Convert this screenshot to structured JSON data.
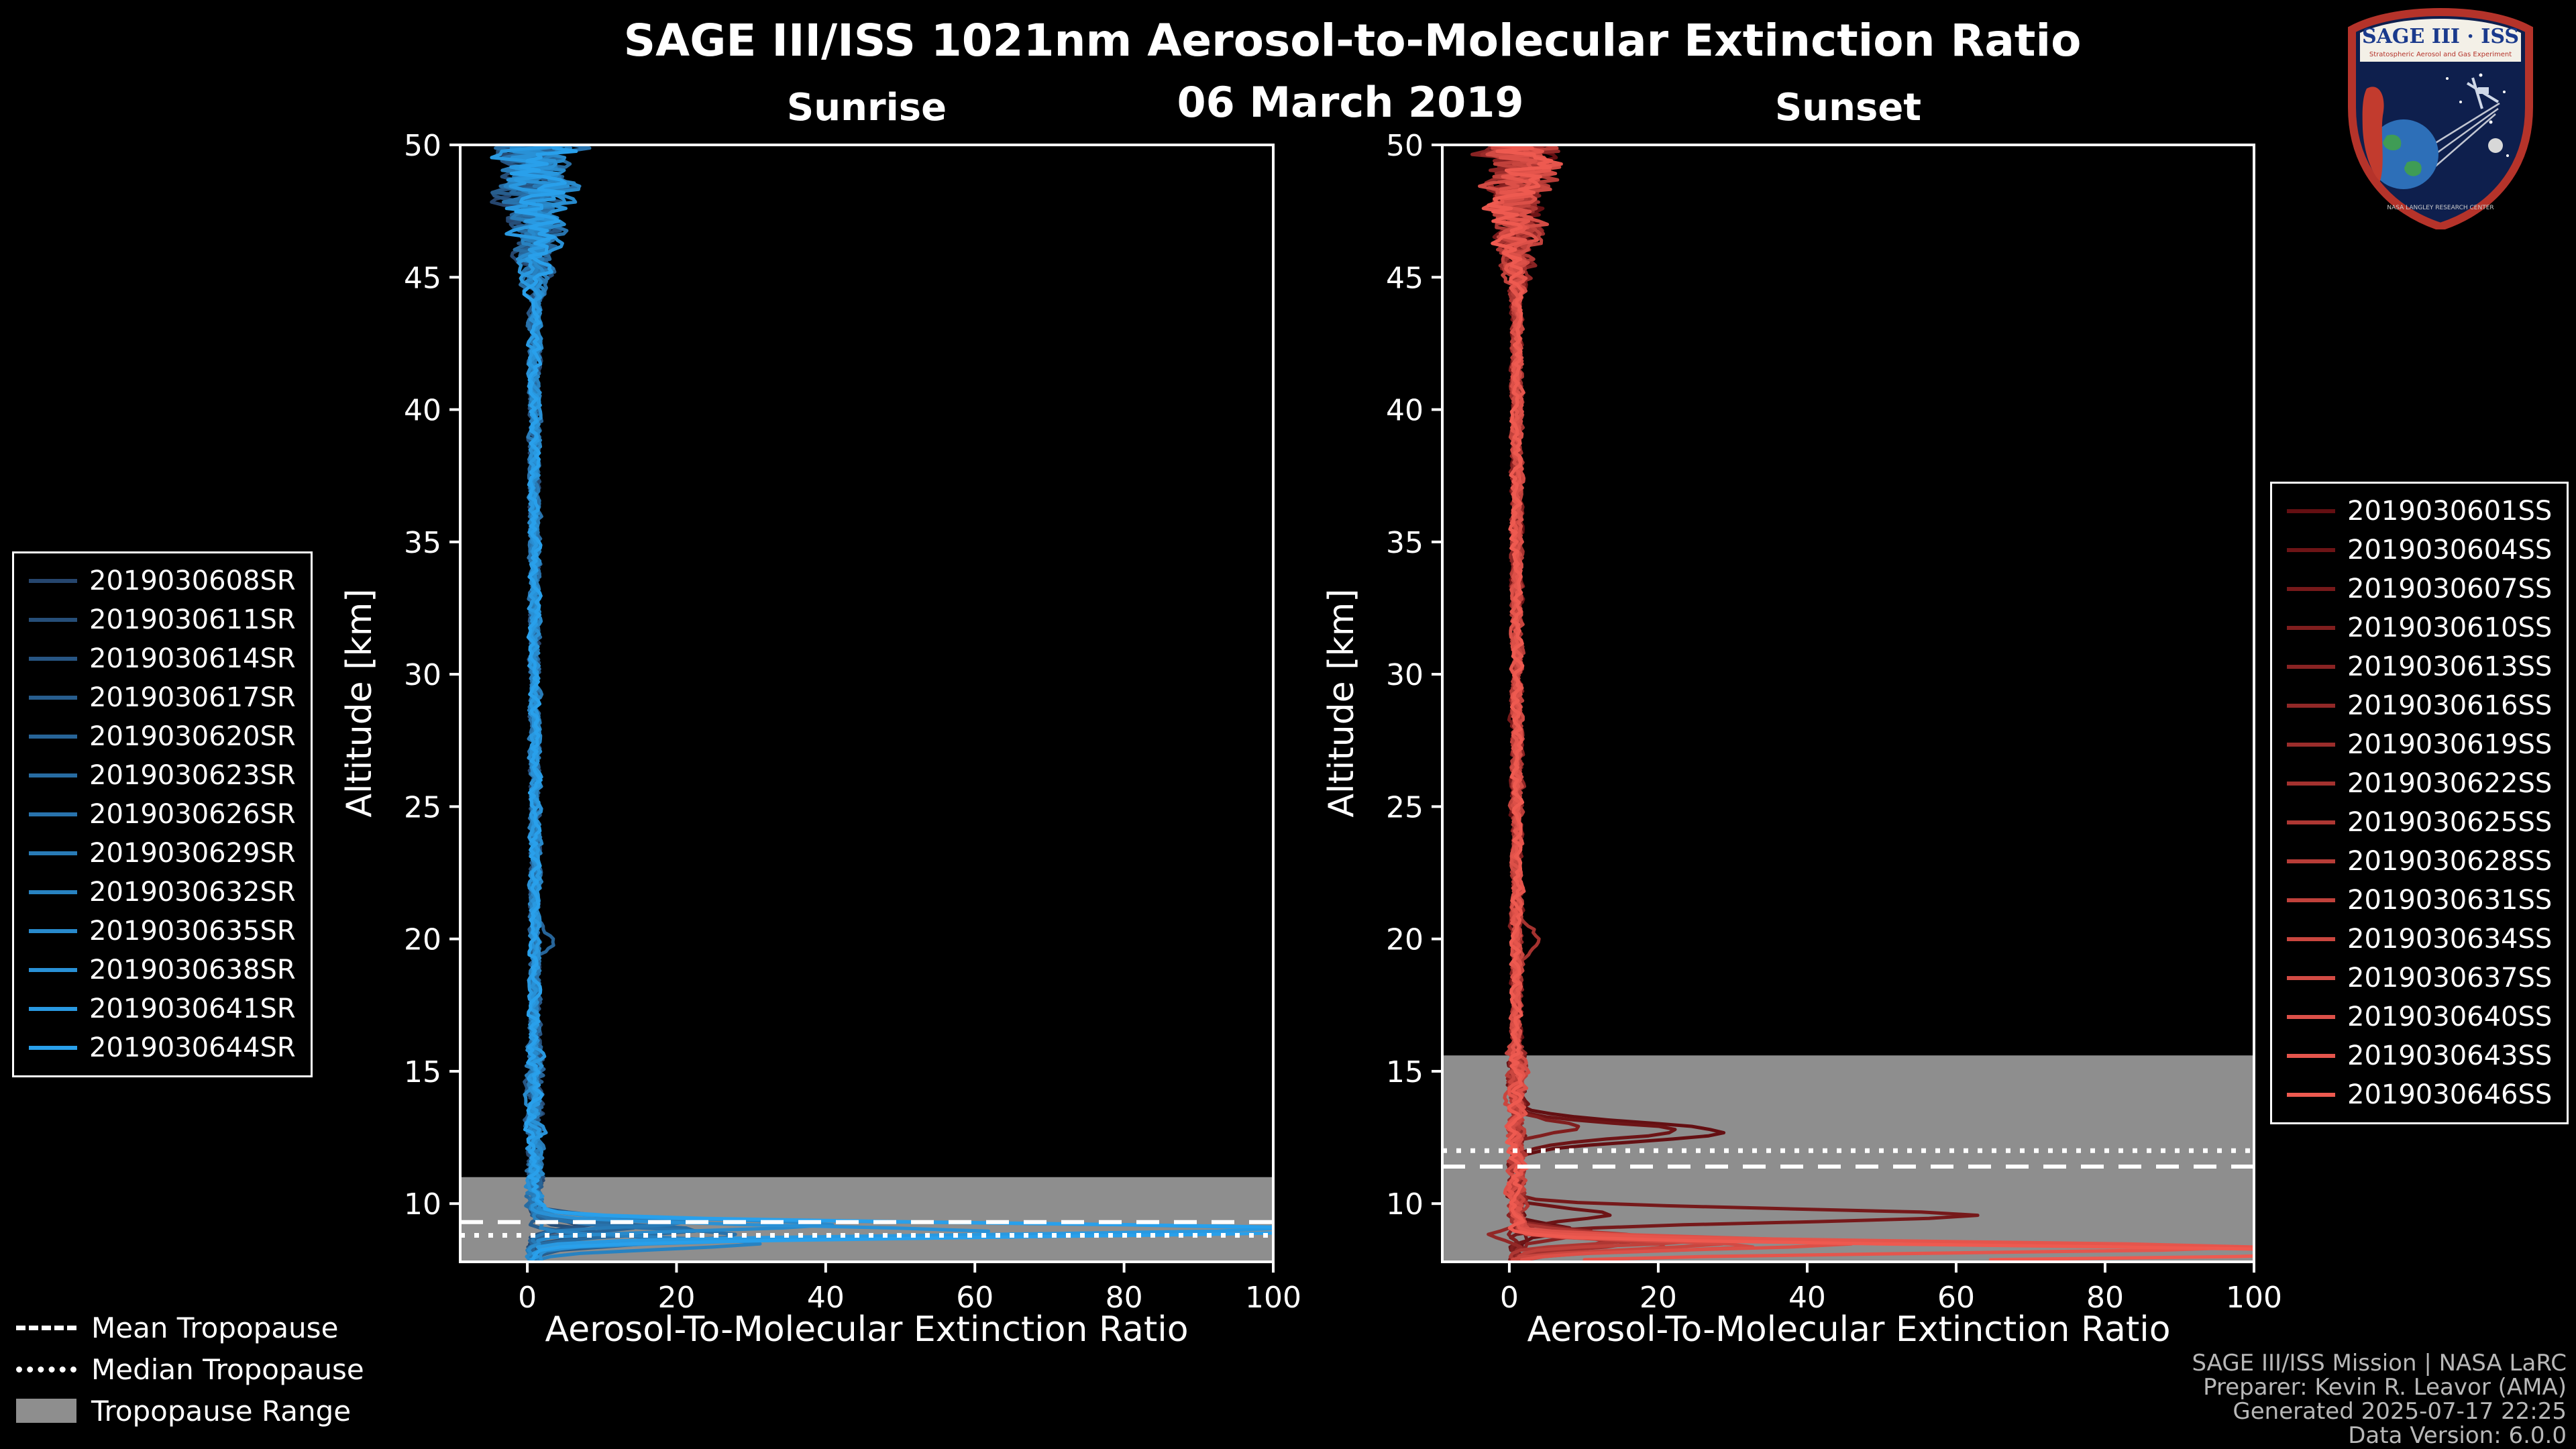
{
  "header": {
    "title": "SAGE III/ISS 1021nm Aerosol-to-Molecular Extinction Ratio",
    "date": "06 March 2019"
  },
  "logo": {
    "title": "SAGE III · ISS",
    "subtitle": "Stratospheric Aerosol and Gas Experiment",
    "caption": "NASA LANGLEY RESEARCH CENTER"
  },
  "tropopause_legend": [
    {
      "type": "dashed",
      "label": "Mean Tropopause"
    },
    {
      "type": "dotted",
      "label": "Median Tropopause"
    },
    {
      "type": "patch",
      "label": "Tropopause Range"
    }
  ],
  "footer": {
    "credits": [
      "SAGE III/ISS Mission | NASA LaRC",
      "Preparer: Kevin R. Leavor (AMA)",
      "Generated 2025-07-17 22:25",
      "Data Version: 6.0.0"
    ]
  },
  "chart_data": [
    {
      "panel": "sunrise",
      "type": "line",
      "title": "Sunrise",
      "xlabel": "Aerosol-To-Molecular Extinction Ratio",
      "ylabel": "Altitude [km]",
      "xlim": [
        -9,
        100
      ],
      "ylim": [
        7.8,
        50
      ],
      "xticks": [
        0,
        20,
        40,
        60,
        80,
        100
      ],
      "yticks": [
        10,
        15,
        20,
        25,
        30,
        35,
        40,
        45,
        50
      ],
      "grid": false,
      "legend_position": "outside-left",
      "base_value": 1.0,
      "noise": {
        "upper_alt": 44,
        "upper_amp": 4.5,
        "mid_amp": 0.55,
        "low_amp": 0.9
      },
      "tropopause": {
        "mean": 9.3,
        "median": 8.8,
        "range": [
          7.8,
          11.0
        ]
      },
      "series": [
        {
          "label": "2019030608SR",
          "color": "#26466e",
          "seed": 101,
          "spikes": [
            {
              "alt": 9.2,
              "hw": 0.3,
              "peak": 6
            }
          ]
        },
        {
          "label": "2019030611SR",
          "color": "#264e78",
          "seed": 102,
          "spikes": [
            {
              "alt": 8.9,
              "hw": 0.25,
              "peak": 9
            }
          ]
        },
        {
          "label": "2019030614SR",
          "color": "#275583",
          "seed": 103,
          "spikes": [
            {
              "alt": 9.4,
              "hw": 0.3,
              "peak": 12
            }
          ]
        },
        {
          "label": "2019030617SR",
          "color": "#275d8d",
          "seed": 104,
          "spikes": [
            {
              "alt": 8.6,
              "hw": 0.3,
              "peak": 18
            }
          ]
        },
        {
          "label": "2019030620SR",
          "color": "#276498",
          "seed": 105,
          "spikes": [
            {
              "alt": 9.1,
              "hw": 0.25,
              "peak": 14
            },
            {
              "alt": 20.0,
              "hw": 0.5,
              "peak": 2.5
            }
          ]
        },
        {
          "label": "2019030623SR",
          "color": "#276ca2",
          "seed": 106,
          "spikes": [
            {
              "alt": 9.0,
              "hw": 0.3,
              "peak": 22
            }
          ]
        },
        {
          "label": "2019030626SR",
          "color": "#2873ad",
          "seed": 107,
          "spikes": [
            {
              "alt": 8.8,
              "hw": 0.35,
              "peak": 28
            }
          ]
        },
        {
          "label": "2019030629SR",
          "color": "#287bb7",
          "seed": 108,
          "spikes": [
            {
              "alt": 9.3,
              "hw": 0.25,
              "peak": 20
            }
          ]
        },
        {
          "label": "2019030632SR",
          "color": "#2882c1",
          "seed": 109,
          "spikes": [
            {
              "alt": 8.5,
              "hw": 0.3,
              "peak": 30
            }
          ]
        },
        {
          "label": "2019030635SR",
          "color": "#288acc",
          "seed": 110,
          "spikes": [
            {
              "alt": 9.2,
              "hw": 0.3,
              "peak": 40
            }
          ]
        },
        {
          "label": "2019030638SR",
          "color": "#2991d6",
          "seed": 111,
          "spikes": [
            {
              "alt": 8.9,
              "hw": 0.35,
              "peak": 62
            }
          ]
        },
        {
          "label": "2019030641SR",
          "color": "#2999e1",
          "seed": 112,
          "spikes": [
            {
              "alt": 9.05,
              "hw": 0.3,
              "peak": 100
            }
          ]
        },
        {
          "label": "2019030644SR",
          "color": "#29a0eb",
          "seed": 113,
          "spikes": [
            {
              "alt": 9.0,
              "hw": 0.35,
              "peak": 112
            }
          ]
        }
      ]
    },
    {
      "panel": "sunset",
      "type": "line",
      "title": "Sunset",
      "xlabel": "Aerosol-To-Molecular Extinction Ratio",
      "ylabel": "Altitude [km]",
      "xlim": [
        -9,
        100
      ],
      "ylim": [
        7.8,
        50
      ],
      "xticks": [
        0,
        20,
        40,
        60,
        80,
        100
      ],
      "yticks": [
        10,
        15,
        20,
        25,
        30,
        35,
        40,
        45,
        50
      ],
      "grid": false,
      "legend_position": "outside-right",
      "base_value": 1.0,
      "noise": {
        "upper_alt": 44,
        "upper_amp": 4.0,
        "mid_amp": 0.55,
        "low_amp": 0.9
      },
      "tropopause": {
        "mean": 11.4,
        "median": 12.0,
        "range": [
          7.8,
          15.6
        ]
      },
      "series": [
        {
          "label": "2019030601SS",
          "color": "#640f12",
          "seed": 201,
          "spikes": [
            {
              "alt": 12.7,
              "hw": 0.5,
              "peak": 27
            },
            {
              "alt": 9.0,
              "hw": 0.3,
              "peak": 8
            }
          ]
        },
        {
          "label": "2019030604SS",
          "color": "#6d1416",
          "seed": 202,
          "spikes": [
            {
              "alt": 12.75,
              "hw": 0.4,
              "peak": 22
            },
            {
              "alt": 9.6,
              "hw": 0.3,
              "peak": 12
            }
          ]
        },
        {
          "label": "2019030607SS",
          "color": "#76191a",
          "seed": 203,
          "spikes": [
            {
              "alt": 9.55,
              "hw": 0.35,
              "peak": 62
            }
          ]
        },
        {
          "label": "2019030610SS",
          "color": "#801e1e",
          "seed": 204,
          "spikes": [
            {
              "alt": 12.9,
              "hw": 0.3,
              "peak": 9
            }
          ]
        },
        {
          "label": "2019030613SS",
          "color": "#892323",
          "seed": 205,
          "spikes": [
            {
              "alt": 8.9,
              "hw": 0.3,
              "peak": 10
            }
          ]
        },
        {
          "label": "2019030616SS",
          "color": "#922827",
          "seed": 206,
          "spikes": [
            {
              "alt": 8.8,
              "hw": 0.25,
              "peak": -4
            }
          ]
        },
        {
          "label": "2019030619SS",
          "color": "#9b2d2b",
          "seed": 207,
          "spikes": [
            {
              "alt": 8.6,
              "hw": 0.3,
              "peak": 12
            }
          ]
        },
        {
          "label": "2019030622SS",
          "color": "#a4322f",
          "seed": 208,
          "spikes": [
            {
              "alt": 20.0,
              "hw": 0.5,
              "peak": 3
            },
            {
              "alt": 8.5,
              "hw": 0.3,
              "peak": 15
            }
          ]
        },
        {
          "label": "2019030625SS",
          "color": "#ae3733",
          "seed": 209,
          "spikes": [
            {
              "alt": 8.7,
              "hw": 0.3,
              "peak": 18
            }
          ]
        },
        {
          "label": "2019030628SS",
          "color": "#b73c37",
          "seed": 210,
          "spikes": [
            {
              "alt": 8.4,
              "hw": 0.3,
              "peak": 20
            }
          ]
        },
        {
          "label": "2019030631SS",
          "color": "#c0413b",
          "seed": 211,
          "spikes": [
            {
              "alt": 8.6,
              "hw": 0.25,
              "peak": 24
            }
          ]
        },
        {
          "label": "2019030634SS",
          "color": "#c9463f",
          "seed": 212,
          "spikes": [
            {
              "alt": 8.5,
              "hw": 0.3,
              "peak": 28
            }
          ]
        },
        {
          "label": "2019030637SS",
          "color": "#d24b44",
          "seed": 213,
          "spikes": [
            {
              "alt": 8.4,
              "hw": 0.25,
              "peak": 32
            }
          ]
        },
        {
          "label": "2019030640SS",
          "color": "#dc5048",
          "seed": 214,
          "spikes": [
            {
              "alt": 8.5,
              "hw": 0.3,
              "peak": 45
            }
          ]
        },
        {
          "label": "2019030643SS",
          "color": "#e5554c",
          "seed": 215,
          "spikes": [
            {
              "alt": 8.35,
              "hw": 0.3,
              "peak": 100
            }
          ]
        },
        {
          "label": "2019030646SS",
          "color": "#ee5a50",
          "seed": 216,
          "spikes": [
            {
              "alt": 8.15,
              "hw": 0.35,
              "peak": 115
            }
          ]
        }
      ]
    }
  ]
}
